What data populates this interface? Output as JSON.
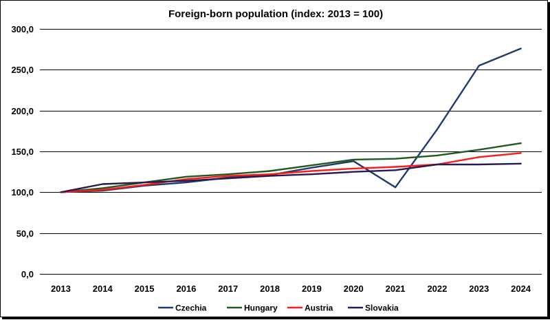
{
  "chart_data": {
    "type": "line",
    "title": "Foreign-born population (index: 2013 = 100)",
    "xlabel": "",
    "ylabel": "",
    "x": [
      "2013",
      "2014",
      "2015",
      "2016",
      "2017",
      "2018",
      "2019",
      "2020",
      "2021",
      "2022",
      "2023",
      "2024"
    ],
    "ylim": [
      0,
      300
    ],
    "yticks": [
      "0,0",
      "50,0",
      "100,0",
      "150,0",
      "200,0",
      "250,0",
      "300,0"
    ],
    "ytick_values": [
      0,
      50,
      100,
      150,
      200,
      250,
      300
    ],
    "grid": true,
    "legend_position": "bottom",
    "series": [
      {
        "name": "Czechia",
        "color": "#1f3a6e",
        "values": [
          100,
          102,
          108,
          112,
          118,
          121,
          130,
          138,
          106,
          177,
          255,
          276
        ]
      },
      {
        "name": "Hungary",
        "color": "#1f5a1f",
        "values": [
          100,
          105,
          112,
          119,
          122,
          126,
          133,
          140,
          141,
          145,
          152,
          160
        ]
      },
      {
        "name": "Austria",
        "color": "#ff1a1a",
        "values": [
          100,
          103,
          109,
          116,
          120,
          122,
          126,
          129,
          131,
          134,
          143,
          148
        ]
      },
      {
        "name": "Slovakia",
        "color": "#2a1a4f",
        "values": [
          100,
          110,
          112,
          114,
          117,
          120,
          122,
          125,
          127,
          134,
          134,
          135
        ]
      }
    ]
  }
}
